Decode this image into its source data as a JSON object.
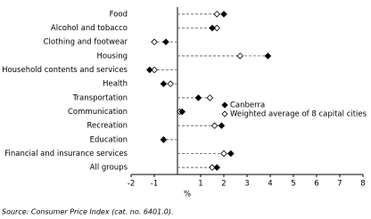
{
  "chart_data": {
    "type": "dot",
    "categories": [
      "Food",
      "Alcohol and tobacco",
      "Clothing and footwear",
      "Housing",
      "Household contents and services",
      "Health",
      "Transportation",
      "Communication",
      "Recreation",
      "Education",
      "Financial and insurance services",
      "All groups"
    ],
    "series": [
      {
        "name": "Canberra",
        "color": "#000000",
        "marker": "filled-diamond",
        "values": [
          2.0,
          1.5,
          -0.5,
          3.9,
          -1.2,
          -0.6,
          0.9,
          0.2,
          1.9,
          -0.6,
          2.3,
          1.7
        ]
      },
      {
        "name": "Weighted average of 8 capital cities",
        "color": "#000000",
        "marker": "open-diamond",
        "values": [
          1.7,
          1.7,
          -1.0,
          2.7,
          -1.0,
          -0.3,
          1.4,
          0.1,
          1.6,
          -0.6,
          2.0,
          1.5
        ]
      }
    ],
    "xlim": [
      -2,
      8
    ],
    "xticks": [
      -2,
      -1,
      1,
      2,
      3,
      4,
      5,
      6,
      7,
      8
    ],
    "x_label": "%",
    "source": "Source: Consumer Price Index (cat. no. 6401.0)."
  }
}
